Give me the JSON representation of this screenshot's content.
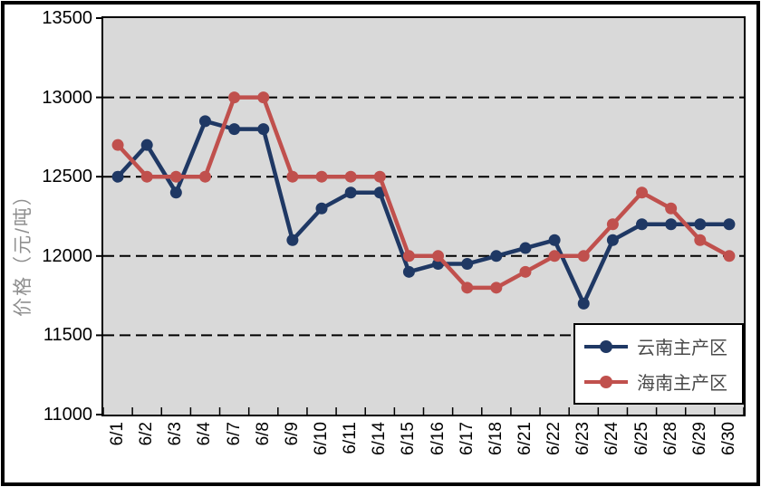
{
  "chart_data": {
    "type": "line",
    "title": "",
    "ylabel": "价格（元/吨）",
    "xlabel": "",
    "categories": [
      "6/1",
      "6/2",
      "6/3",
      "6/4",
      "6/7",
      "6/8",
      "6/9",
      "6/10",
      "6/11",
      "6/14",
      "6/15",
      "6/16",
      "6/17",
      "6/18",
      "6/21",
      "6/22",
      "6/23",
      "6/24",
      "6/25",
      "6/28",
      "6/29",
      "6/30"
    ],
    "series": [
      {
        "name": "云南主产区",
        "color": "#1F3864",
        "values": [
          12500,
          12700,
          12400,
          12850,
          12800,
          12800,
          12100,
          12300,
          12400,
          12400,
          11900,
          11950,
          11950,
          12000,
          12050,
          12100,
          11700,
          12100,
          12200,
          12200,
          12200,
          12200
        ]
      },
      {
        "name": "海南主产区",
        "color": "#C0504D",
        "values": [
          12700,
          12500,
          12500,
          12500,
          13000,
          13000,
          12500,
          12500,
          12500,
          12500,
          12000,
          12000,
          11800,
          11800,
          11900,
          12000,
          12000,
          12200,
          12400,
          12300,
          12100,
          12000
        ]
      }
    ],
    "ylim": [
      11000,
      13500
    ],
    "ytick_interval": 500,
    "ytick_labels": [
      "13500",
      "13000",
      "12500",
      "12000",
      "11500",
      "11000"
    ],
    "gridline_values": [
      13000,
      12500,
      12000,
      11500
    ],
    "grid": "horizontal-dashed",
    "legend_position": "inside-bottom-right",
    "plot_background": "#D9D9D9",
    "axis_color": "#000000"
  }
}
